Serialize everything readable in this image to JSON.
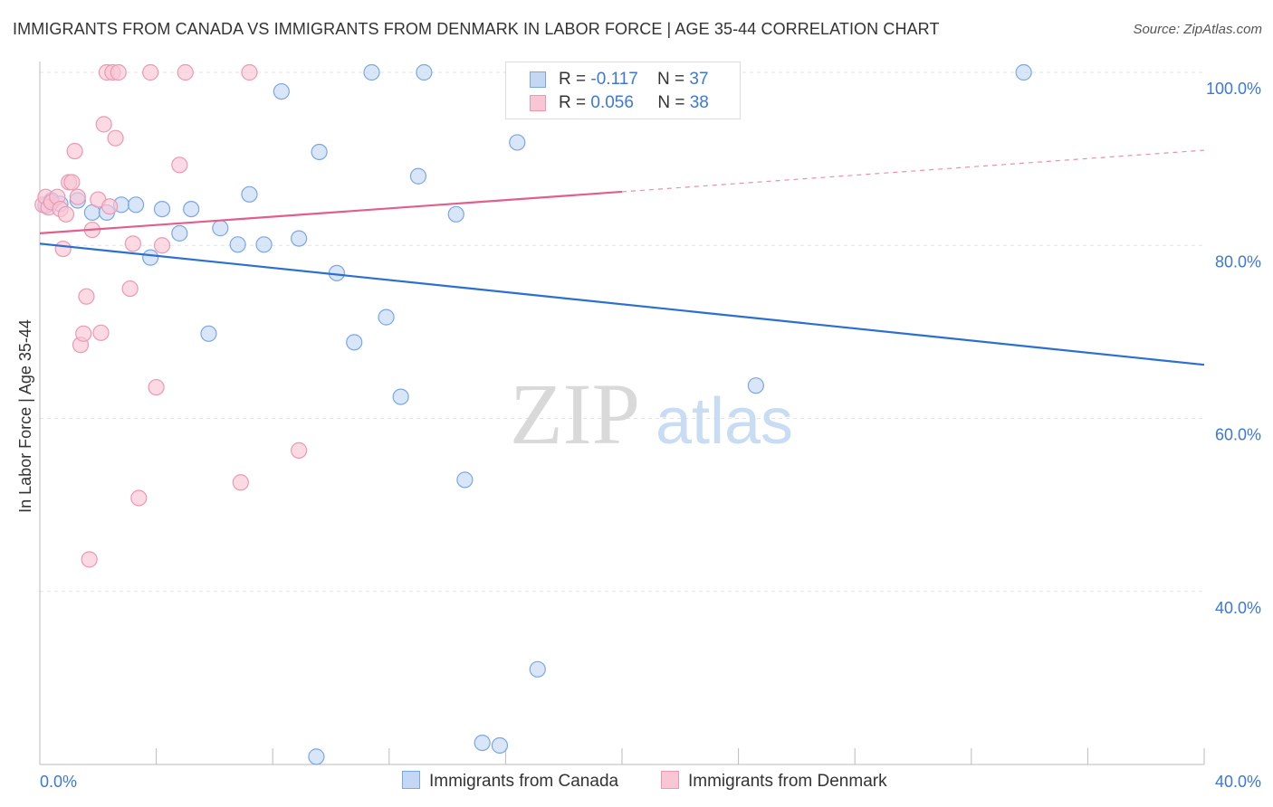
{
  "title": "IMMIGRANTS FROM CANADA VS IMMIGRANTS FROM DENMARK IN LABOR FORCE | AGE 35-44 CORRELATION CHART",
  "source": "Source: ZipAtlas.com",
  "watermark": {
    "zip": "ZIP",
    "atlas": "atlas"
  },
  "legend": {
    "canada": {
      "r_label": "R =",
      "r_value": "-0.117",
      "n_label": "N =",
      "n_value": "37"
    },
    "denmark": {
      "r_label": "R =",
      "r_value": "0.056",
      "n_label": "N =",
      "n_value": "38"
    }
  },
  "colors": {
    "canada_fill": "#c4d8f5",
    "canada_stroke": "#7aa7e3",
    "canada_line": "#2b6fd0",
    "denmark_fill": "#f9c6d5",
    "denmark_stroke": "#ee97b3",
    "denmark_line": "#e05f8c",
    "axis_text": "#3d77d9",
    "grid": "#e3e3e3"
  },
  "chart_data": {
    "type": "scatter",
    "title": "IMMIGRANTS FROM CANADA VS IMMIGRANTS FROM DENMARK IN LABOR FORCE | AGE 35-44 CORRELATION CHART",
    "xlabel": "",
    "ylabel": "In Labor Force | Age 35-44",
    "xlim": [
      0,
      40
    ],
    "ylim": [
      20,
      100
    ],
    "x_tick_labels": [
      "0.0%",
      "40.0%"
    ],
    "y_ticks": [
      40,
      60,
      80,
      100
    ],
    "y_tick_labels": [
      "40.0%",
      "60.0%",
      "80.0%",
      "100.0%"
    ],
    "grid": true,
    "legend_position": "top-center",
    "series": [
      {
        "name": "Immigrants from Canada",
        "points": [
          [
            0.2,
            84.6
          ],
          [
            0.4,
            85.2
          ],
          [
            0.7,
            84.8
          ],
          [
            1.3,
            85.2
          ],
          [
            1.8,
            83.8
          ],
          [
            2.3,
            83.8
          ],
          [
            2.8,
            84.7
          ],
          [
            3.3,
            84.7
          ],
          [
            3.8,
            78.6
          ],
          [
            4.2,
            84.2
          ],
          [
            4.8,
            81.4
          ],
          [
            5.2,
            84.2
          ],
          [
            5.8,
            69.8
          ],
          [
            6.2,
            82.0
          ],
          [
            6.8,
            80.1
          ],
          [
            7.2,
            85.9
          ],
          [
            7.7,
            80.1
          ],
          [
            8.3,
            97.8
          ],
          [
            8.9,
            80.8
          ],
          [
            9.5,
            20.9
          ],
          [
            9.6,
            90.8
          ],
          [
            10.2,
            76.8
          ],
          [
            10.8,
            68.8
          ],
          [
            11.4,
            100.0
          ],
          [
            11.9,
            71.7
          ],
          [
            12.4,
            62.5
          ],
          [
            13.0,
            88.0
          ],
          [
            13.2,
            100.0
          ],
          [
            14.3,
            83.6
          ],
          [
            14.6,
            52.9
          ],
          [
            15.2,
            22.5
          ],
          [
            15.8,
            22.2
          ],
          [
            16.4,
            91.9
          ],
          [
            17.1,
            31.0
          ],
          [
            20.8,
            100.0
          ],
          [
            24.6,
            63.8
          ],
          [
            33.8,
            100.0
          ]
        ],
        "trend": {
          "x": [
            0,
            40
          ],
          "y": [
            80.2,
            66.2
          ]
        }
      },
      {
        "name": "Immigrants from Denmark",
        "points": [
          [
            0.1,
            84.7
          ],
          [
            0.2,
            85.6
          ],
          [
            0.3,
            84.4
          ],
          [
            0.4,
            85.0
          ],
          [
            0.6,
            85.6
          ],
          [
            0.7,
            84.2
          ],
          [
            0.8,
            79.6
          ],
          [
            0.9,
            83.6
          ],
          [
            1.0,
            87.3
          ],
          [
            1.1,
            87.3
          ],
          [
            1.2,
            90.9
          ],
          [
            1.3,
            85.6
          ],
          [
            1.4,
            68.5
          ],
          [
            1.5,
            69.8
          ],
          [
            1.6,
            74.1
          ],
          [
            1.7,
            43.7
          ],
          [
            1.8,
            81.8
          ],
          [
            2.0,
            85.3
          ],
          [
            2.1,
            69.9
          ],
          [
            2.2,
            94.0
          ],
          [
            2.3,
            100.0
          ],
          [
            2.4,
            84.5
          ],
          [
            2.5,
            100.0
          ],
          [
            2.6,
            92.4
          ],
          [
            2.7,
            100.0
          ],
          [
            3.1,
            75.0
          ],
          [
            3.2,
            80.2
          ],
          [
            3.4,
            50.8
          ],
          [
            3.8,
            100.0
          ],
          [
            4.0,
            63.6
          ],
          [
            4.2,
            80.0
          ],
          [
            4.8,
            89.3
          ],
          [
            5.0,
            100.0
          ],
          [
            6.9,
            52.6
          ],
          [
            7.2,
            100.0
          ],
          [
            8.9,
            56.3
          ],
          [
            18.9,
            96.3
          ],
          [
            19.0,
            100.0
          ]
        ],
        "trend": {
          "x": [
            0,
            40
          ],
          "y": [
            81.4,
            91.0
          ],
          "solid_until_x": 20
        }
      }
    ]
  }
}
